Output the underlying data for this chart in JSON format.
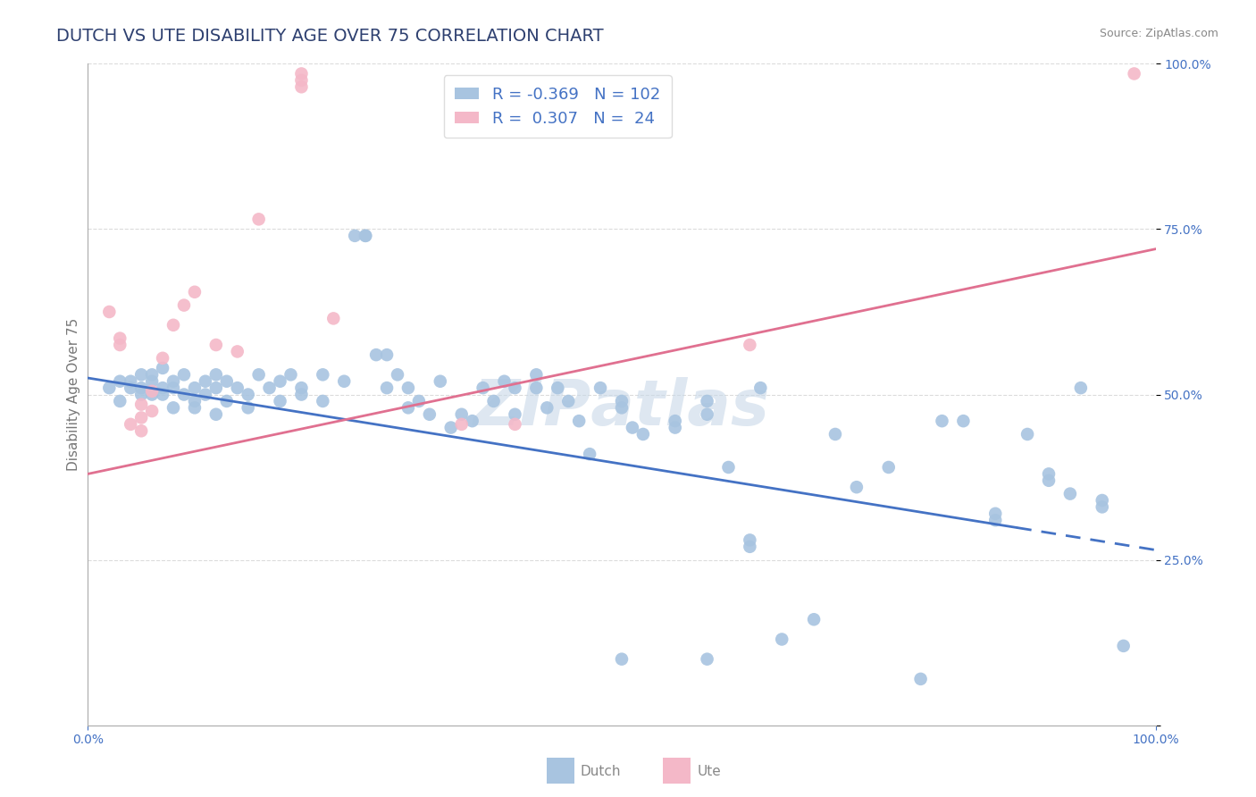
{
  "title": "DUTCH VS UTE DISABILITY AGE OVER 75 CORRELATION CHART",
  "source": "Source: ZipAtlas.com",
  "ylabel": "Disability Age Over 75",
  "xlim": [
    0.0,
    1.0
  ],
  "ylim": [
    0.0,
    1.0
  ],
  "dutch_R": -0.369,
  "dutch_N": 102,
  "ute_R": 0.307,
  "ute_N": 24,
  "dutch_color": "#a8c4e0",
  "dutch_line_color": "#4472c4",
  "ute_color": "#f4b8c8",
  "ute_line_color": "#e07090",
  "title_color": "#2e4070",
  "legend_text_color": "#4472c4",
  "background_color": "#ffffff",
  "watermark_color": "#c8d8e8",
  "grid_color": "#cccccc",
  "axis_color": "#aaaaaa",
  "tick_color": "#777777",
  "right_tick_color": "#4472c4",
  "source_color": "#888888",
  "bottom_label_color": "#888888",
  "dutch_line_x0": 0.0,
  "dutch_line_y0": 0.525,
  "dutch_line_x1": 1.0,
  "dutch_line_y1": 0.265,
  "dutch_line_solid_end": 0.87,
  "ute_line_x0": 0.0,
  "ute_line_y0": 0.38,
  "ute_line_x1": 1.0,
  "ute_line_y1": 0.72,
  "dutch_scatter": [
    [
      0.02,
      0.51
    ],
    [
      0.03,
      0.52
    ],
    [
      0.03,
      0.49
    ],
    [
      0.04,
      0.52
    ],
    [
      0.04,
      0.51
    ],
    [
      0.05,
      0.53
    ],
    [
      0.05,
      0.5
    ],
    [
      0.05,
      0.51
    ],
    [
      0.06,
      0.53
    ],
    [
      0.06,
      0.5
    ],
    [
      0.06,
      0.52
    ],
    [
      0.07,
      0.51
    ],
    [
      0.07,
      0.5
    ],
    [
      0.07,
      0.54
    ],
    [
      0.08,
      0.51
    ],
    [
      0.08,
      0.48
    ],
    [
      0.08,
      0.52
    ],
    [
      0.09,
      0.5
    ],
    [
      0.09,
      0.53
    ],
    [
      0.1,
      0.51
    ],
    [
      0.1,
      0.49
    ],
    [
      0.1,
      0.48
    ],
    [
      0.11,
      0.52
    ],
    [
      0.11,
      0.5
    ],
    [
      0.12,
      0.51
    ],
    [
      0.12,
      0.53
    ],
    [
      0.12,
      0.47
    ],
    [
      0.13,
      0.52
    ],
    [
      0.13,
      0.49
    ],
    [
      0.14,
      0.51
    ],
    [
      0.15,
      0.5
    ],
    [
      0.15,
      0.48
    ],
    [
      0.16,
      0.53
    ],
    [
      0.17,
      0.51
    ],
    [
      0.18,
      0.52
    ],
    [
      0.18,
      0.49
    ],
    [
      0.19,
      0.53
    ],
    [
      0.2,
      0.51
    ],
    [
      0.2,
      0.5
    ],
    [
      0.22,
      0.49
    ],
    [
      0.22,
      0.53
    ],
    [
      0.24,
      0.52
    ],
    [
      0.25,
      0.74
    ],
    [
      0.26,
      0.74
    ],
    [
      0.26,
      0.74
    ],
    [
      0.27,
      0.56
    ],
    [
      0.28,
      0.56
    ],
    [
      0.28,
      0.51
    ],
    [
      0.29,
      0.53
    ],
    [
      0.3,
      0.51
    ],
    [
      0.3,
      0.48
    ],
    [
      0.31,
      0.49
    ],
    [
      0.32,
      0.47
    ],
    [
      0.33,
      0.52
    ],
    [
      0.34,
      0.45
    ],
    [
      0.35,
      0.47
    ],
    [
      0.36,
      0.46
    ],
    [
      0.37,
      0.51
    ],
    [
      0.38,
      0.49
    ],
    [
      0.39,
      0.52
    ],
    [
      0.4,
      0.47
    ],
    [
      0.4,
      0.51
    ],
    [
      0.42,
      0.53
    ],
    [
      0.42,
      0.51
    ],
    [
      0.43,
      0.48
    ],
    [
      0.44,
      0.51
    ],
    [
      0.45,
      0.49
    ],
    [
      0.46,
      0.46
    ],
    [
      0.47,
      0.41
    ],
    [
      0.48,
      0.51
    ],
    [
      0.5,
      0.48
    ],
    [
      0.5,
      0.49
    ],
    [
      0.51,
      0.45
    ],
    [
      0.52,
      0.44
    ],
    [
      0.55,
      0.46
    ],
    [
      0.55,
      0.45
    ],
    [
      0.58,
      0.49
    ],
    [
      0.58,
      0.47
    ],
    [
      0.6,
      0.39
    ],
    [
      0.62,
      0.27
    ],
    [
      0.62,
      0.28
    ],
    [
      0.63,
      0.51
    ],
    [
      0.65,
      0.13
    ],
    [
      0.68,
      0.16
    ],
    [
      0.7,
      0.44
    ],
    [
      0.72,
      0.36
    ],
    [
      0.75,
      0.39
    ],
    [
      0.78,
      0.07
    ],
    [
      0.8,
      0.46
    ],
    [
      0.82,
      0.46
    ],
    [
      0.85,
      0.31
    ],
    [
      0.85,
      0.32
    ],
    [
      0.88,
      0.44
    ],
    [
      0.9,
      0.37
    ],
    [
      0.9,
      0.38
    ],
    [
      0.92,
      0.35
    ],
    [
      0.93,
      0.51
    ],
    [
      0.95,
      0.33
    ],
    [
      0.95,
      0.34
    ],
    [
      0.97,
      0.12
    ],
    [
      0.5,
      0.1
    ],
    [
      0.58,
      0.1
    ]
  ],
  "ute_scatter": [
    [
      0.02,
      0.625
    ],
    [
      0.03,
      0.575
    ],
    [
      0.03,
      0.585
    ],
    [
      0.04,
      0.455
    ],
    [
      0.05,
      0.445
    ],
    [
      0.05,
      0.465
    ],
    [
      0.05,
      0.485
    ],
    [
      0.06,
      0.475
    ],
    [
      0.06,
      0.505
    ],
    [
      0.07,
      0.555
    ],
    [
      0.08,
      0.605
    ],
    [
      0.09,
      0.635
    ],
    [
      0.1,
      0.655
    ],
    [
      0.12,
      0.575
    ],
    [
      0.14,
      0.565
    ],
    [
      0.16,
      0.765
    ],
    [
      0.2,
      0.965
    ],
    [
      0.2,
      0.975
    ],
    [
      0.2,
      0.985
    ],
    [
      0.23,
      0.615
    ],
    [
      0.35,
      0.455
    ],
    [
      0.4,
      0.455
    ],
    [
      0.62,
      0.575
    ],
    [
      0.98,
      0.985
    ]
  ],
  "title_fontsize": 14,
  "axis_label_fontsize": 11,
  "tick_fontsize": 10,
  "legend_fontsize": 13,
  "watermark_fontsize": 52,
  "source_fontsize": 9
}
